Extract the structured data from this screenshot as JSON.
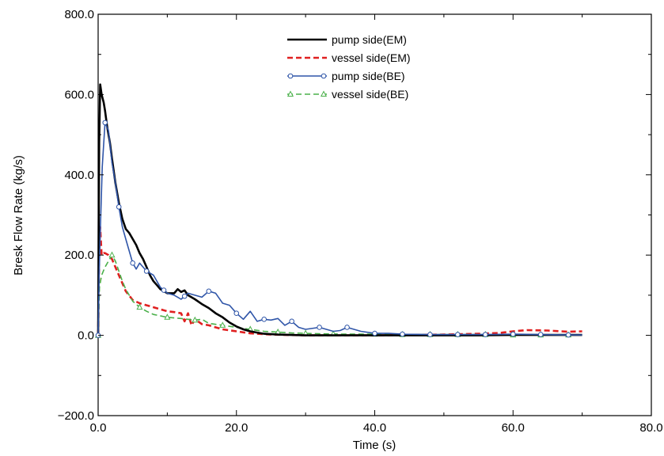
{
  "chart_data": {
    "type": "line",
    "xlabel": "Time (s)",
    "ylabel": "Bresk Flow Rate (kg/s)",
    "xlim": [
      0,
      80
    ],
    "ylim": [
      -200,
      800
    ],
    "xticks": [
      0,
      20,
      40,
      60,
      80
    ],
    "xtick_labels": [
      "0.0",
      "20.0",
      "40.0",
      "60.0",
      "80.0"
    ],
    "yticks": [
      -200,
      0,
      200,
      400,
      600,
      800
    ],
    "ytick_labels": [
      "−200.0",
      "0.0",
      "200.0",
      "400.0",
      "600.0",
      "800.0"
    ],
    "grid": false,
    "legend_position": "top-center",
    "series": [
      {
        "name": "pump side(EM)",
        "color": "#000000",
        "style": "solid",
        "marker": "none",
        "x": [
          0,
          0.15,
          0.3,
          0.5,
          0.8,
          1.0,
          1.3,
          1.7,
          2.0,
          2.5,
          3.0,
          3.5,
          4.0,
          4.5,
          5.0,
          5.5,
          6.0,
          6.5,
          7.0,
          7.5,
          8.0,
          8.5,
          9.0,
          9.5,
          10.0,
          11.0,
          11.5,
          12.0,
          12.5,
          13.0,
          14.0,
          15.0,
          16.0,
          17.0,
          18.0,
          19.0,
          20.0,
          21.0,
          22.0,
          23.0,
          24.0,
          26.0,
          28.0,
          30.0,
          35.0,
          40.0,
          45.0,
          50.0,
          55.0,
          60.0,
          65.0,
          70.0
        ],
        "y": [
          0,
          480,
          625,
          600,
          580,
          560,
          520,
          480,
          440,
          380,
          330,
          290,
          265,
          255,
          240,
          225,
          205,
          190,
          170,
          150,
          135,
          125,
          115,
          110,
          105,
          105,
          115,
          108,
          112,
          100,
          90,
          78,
          68,
          55,
          45,
          32,
          22,
          15,
          10,
          7,
          4,
          2,
          1,
          0,
          0,
          0,
          0,
          0,
          0,
          1,
          1,
          1
        ]
      },
      {
        "name": "vessel side(EM)",
        "color": "#e02020",
        "style": "dashed",
        "marker": "none",
        "x": [
          0,
          0.15,
          0.3,
          0.5,
          0.8,
          1.0,
          1.5,
          2.0,
          2.5,
          3.0,
          3.5,
          4.0,
          5.0,
          6.0,
          7.0,
          8.0,
          9.0,
          10.0,
          11.0,
          12.0,
          12.5,
          13.0,
          13.5,
          14.0,
          15.0,
          16.0,
          17.0,
          18.0,
          20.0,
          22.0,
          25.0,
          30.0,
          35.0,
          40.0,
          45.0,
          50.0,
          55.0,
          58.0,
          60.0,
          62.0,
          65.0,
          68.0,
          70.0
        ],
        "y": [
          0,
          200,
          270,
          200,
          205,
          205,
          200,
          190,
          170,
          150,
          130,
          110,
          88,
          80,
          75,
          70,
          65,
          60,
          58,
          55,
          35,
          55,
          25,
          40,
          28,
          25,
          20,
          15,
          10,
          5,
          2,
          0,
          0,
          0,
          1,
          2,
          4,
          6,
          10,
          13,
          12,
          9,
          10
        ]
      },
      {
        "name": "pump side(BE)",
        "color": "#2f55a8",
        "style": "solid",
        "marker": "circle",
        "x": [
          0,
          0.15,
          0.3,
          0.6,
          1.0,
          1.5,
          2.0,
          2.5,
          3.0,
          3.5,
          4.0,
          4.5,
          5.0,
          5.5,
          6.0,
          6.5,
          7.0,
          8.0,
          9.0,
          10.0,
          11.0,
          11.5,
          12.0,
          13.0,
          14.0,
          15.0,
          16.0,
          17.0,
          18.0,
          19.0,
          20.0,
          21.0,
          22.0,
          23.0,
          24.0,
          25.0,
          26.0,
          27.0,
          28.0,
          29.0,
          30.0,
          32.0,
          34.0,
          35.0,
          36.0,
          38.0,
          40.0,
          42.0,
          44.0,
          48.0,
          52.0,
          56.0,
          60.0,
          64.0,
          68.0,
          70.0
        ],
        "y": [
          0,
          150,
          250,
          420,
          530,
          510,
          430,
          380,
          320,
          270,
          240,
          210,
          180,
          165,
          180,
          170,
          160,
          150,
          120,
          105,
          100,
          95,
          90,
          105,
          100,
          95,
          110,
          105,
          80,
          75,
          55,
          40,
          60,
          35,
          40,
          38,
          42,
          25,
          35,
          20,
          15,
          20,
          10,
          12,
          20,
          10,
          5,
          5,
          3,
          2,
          2,
          2,
          3,
          2,
          1,
          1
        ],
        "marked_x": [
          0,
          1.0,
          3.0,
          5.0,
          7.0,
          9.5,
          12.5,
          16.0,
          20.0,
          24.0,
          28.0,
          32.0,
          36.0,
          40.0,
          44.0,
          48.0,
          52.0,
          56.0,
          60.0,
          64.0,
          68.0
        ]
      },
      {
        "name": "vessel side(BE)",
        "color": "#4ab04a",
        "style": "dashed",
        "marker": "triangle",
        "x": [
          0,
          0.2,
          0.5,
          1.0,
          1.5,
          2.0,
          2.5,
          3.0,
          3.5,
          4.0,
          5.0,
          6.0,
          7.0,
          8.0,
          10.0,
          12.0,
          14.0,
          15.0,
          16.0,
          18.0,
          20.0,
          22.0,
          24.0,
          26.0,
          28.0,
          30.0,
          32.0,
          36.0,
          40.0,
          44.0,
          48.0,
          52.0,
          56.0,
          60.0,
          64.0,
          68.0,
          70.0
        ],
        "y": [
          0,
          120,
          150,
          170,
          185,
          200,
          185,
          160,
          135,
          115,
          85,
          70,
          60,
          52,
          45,
          42,
          38,
          40,
          30,
          25,
          20,
          15,
          10,
          8,
          6,
          5,
          4,
          3,
          3,
          2,
          2,
          2,
          2,
          1,
          1,
          1,
          1
        ],
        "marked_x": [
          0,
          2.0,
          6.0,
          10.0,
          14.0,
          18.0,
          22.0,
          26.0,
          30.0,
          34.0,
          40.0,
          44.0,
          48.0,
          52.0,
          56.0,
          60.0,
          64.0,
          68.0
        ]
      }
    ]
  }
}
